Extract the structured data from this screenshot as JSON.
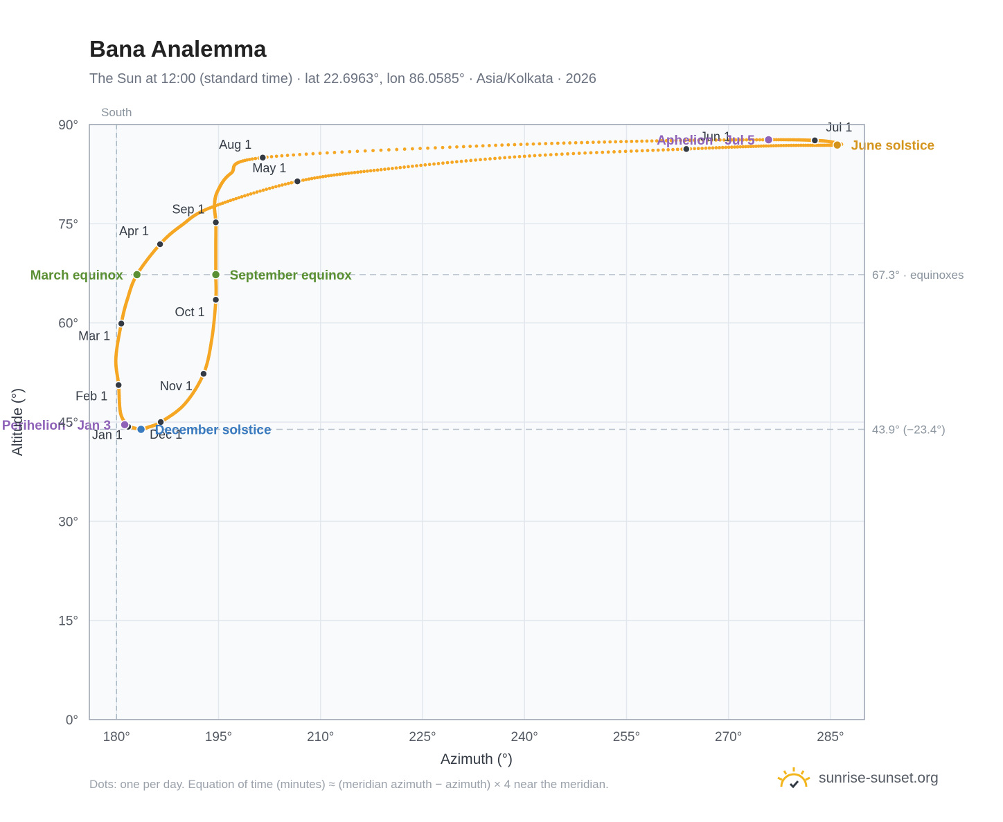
{
  "header": {
    "title": "Bana Analemma",
    "subtitle": "The Sun at 12:00 (standard time) · lat 22.6963°, lon 86.0585° · Asia/Kolkata · 2026"
  },
  "footer": {
    "note": "Dots: one per day. Equation of time (minutes) ≈ (meridian azimuth − azimuth) × 4 near the meridian.",
    "brand": "sunrise-sunset.org"
  },
  "colors": {
    "path": "#f5a623",
    "month_marker": "#333a44",
    "equinox": "#5a8f33",
    "december_solstice": "#3a7abf",
    "june_solstice": "#d4941c",
    "apsis": "#8e63b8",
    "grid": "#e3e8ee",
    "plot_bg": "#f8fafc",
    "reference_line": "#b8c2cc"
  },
  "chart_data": {
    "type": "scatter",
    "xlabel": "Azimuth (°)",
    "ylabel": "Altitude (°)",
    "xlim": [
      176,
      290
    ],
    "ylim": [
      0,
      90
    ],
    "xticks": [
      "180°",
      "195°",
      "210°",
      "225°",
      "240°",
      "255°",
      "270°",
      "285°"
    ],
    "xtick_values": [
      180,
      195,
      210,
      225,
      240,
      255,
      270,
      285
    ],
    "yticks": [
      "0°",
      "15°",
      "30°",
      "45°",
      "60°",
      "75°",
      "90°"
    ],
    "ytick_values": [
      0,
      15,
      30,
      45,
      60,
      75,
      90
    ],
    "grid": true,
    "south_line": {
      "label": "South",
      "azimuth": 180
    },
    "reference_lines": [
      {
        "label": "67.3° · equinoxes",
        "altitude": 67.3
      },
      {
        "label": "43.9° (−23.4°)",
        "altitude": 43.9
      }
    ],
    "series_path_anchors": [
      {
        "date": "Jan 1",
        "az": 181.7,
        "alt": 44.3
      },
      {
        "date": "Jan 15",
        "az": 180.6,
        "alt": 46.3
      },
      {
        "date": "Feb 1",
        "az": 180.3,
        "alt": 50.6
      },
      {
        "date": "Feb 15",
        "az": 179.9,
        "alt": 54.6
      },
      {
        "date": "Mar 1",
        "az": 180.7,
        "alt": 59.9
      },
      {
        "date": "Mar 10",
        "az": 181.6,
        "alt": 63.6
      },
      {
        "date": "Mar 20",
        "az": 183.0,
        "alt": 67.3
      },
      {
        "date": "Apr 1",
        "az": 186.4,
        "alt": 71.9
      },
      {
        "date": "Apr 10",
        "az": 189.5,
        "alt": 74.7
      },
      {
        "date": "Apr 20",
        "az": 194.0,
        "alt": 77.5
      },
      {
        "date": "May 1",
        "az": 206.6,
        "alt": 81.4
      },
      {
        "date": "May 10",
        "az": 220.0,
        "alt": 83.3
      },
      {
        "date": "May 20",
        "az": 240.0,
        "alt": 85.2
      },
      {
        "date": "Jun 1",
        "az": 263.8,
        "alt": 86.3
      },
      {
        "date": "Jun 12",
        "az": 277.0,
        "alt": 86.8
      },
      {
        "date": "Jun 21",
        "az": 286.0,
        "alt": 86.9
      },
      {
        "date": "Jun 26",
        "az": 285.5,
        "alt": 87.3
      },
      {
        "date": "Jul 1",
        "az": 282.7,
        "alt": 87.6
      },
      {
        "date": "Jul 5",
        "az": 275.9,
        "alt": 87.7
      },
      {
        "date": "Jul 15",
        "az": 258.0,
        "alt": 87.5
      },
      {
        "date": "Jul 25",
        "az": 232.0,
        "alt": 86.7
      },
      {
        "date": "Aug 1",
        "az": 201.5,
        "alt": 85.0
      },
      {
        "date": "Aug 8",
        "az": 196.8,
        "alt": 82.6
      },
      {
        "date": "Aug 15",
        "az": 194.9,
        "alt": 80.0
      },
      {
        "date": "Aug 22",
        "az": 194.4,
        "alt": 77.8
      },
      {
        "date": "Sep 1",
        "az": 194.6,
        "alt": 75.2
      },
      {
        "date": "Sep 10",
        "az": 194.6,
        "alt": 71.5
      },
      {
        "date": "Sep 22",
        "az": 194.6,
        "alt": 67.3
      },
      {
        "date": "Oct 1",
        "az": 194.6,
        "alt": 63.5
      },
      {
        "date": "Oct 15",
        "az": 194.0,
        "alt": 57.5
      },
      {
        "date": "Nov 1",
        "az": 192.8,
        "alt": 52.3
      },
      {
        "date": "Nov 15",
        "az": 190.0,
        "alt": 47.7
      },
      {
        "date": "Dec 1",
        "az": 186.5,
        "alt": 45.0
      },
      {
        "date": "Dec 10",
        "az": 184.6,
        "alt": 44.2
      },
      {
        "date": "Dec 21",
        "az": 183.6,
        "alt": 43.9
      },
      {
        "date": "Dec 31",
        "az": 181.8,
        "alt": 44.3
      }
    ],
    "month_markers": [
      {
        "label": "Jan 1",
        "az": 181.7,
        "alt": 44.3
      },
      {
        "label": "Feb 1",
        "az": 180.3,
        "alt": 50.6
      },
      {
        "label": "Mar 1",
        "az": 180.7,
        "alt": 59.9
      },
      {
        "label": "Apr 1",
        "az": 186.4,
        "alt": 71.9
      },
      {
        "label": "May 1",
        "az": 206.6,
        "alt": 81.4
      },
      {
        "label": "Jun 1",
        "az": 263.8,
        "alt": 86.3
      },
      {
        "label": "Jul 1",
        "az": 282.7,
        "alt": 87.6
      },
      {
        "label": "Aug 1",
        "az": 201.5,
        "alt": 85.0
      },
      {
        "label": "Sep 1",
        "az": 194.6,
        "alt": 75.2
      },
      {
        "label": "Oct 1",
        "az": 194.6,
        "alt": 63.5
      },
      {
        "label": "Nov 1",
        "az": 192.8,
        "alt": 52.3
      },
      {
        "label": "Dec 1",
        "az": 186.5,
        "alt": 45.0
      }
    ],
    "events": [
      {
        "label": "March equinox",
        "az": 183.0,
        "alt": 67.3,
        "color_key": "equinox",
        "side": "left"
      },
      {
        "label": "September equinox",
        "az": 194.6,
        "alt": 67.3,
        "color_key": "equinox",
        "side": "right"
      },
      {
        "label": "June solstice",
        "az": 286.0,
        "alt": 86.9,
        "color_key": "june_solstice",
        "side": "right"
      },
      {
        "label": "December solstice",
        "az": 183.6,
        "alt": 43.9,
        "color_key": "december_solstice",
        "side": "right"
      },
      {
        "label": "Perihelion · Jan 3",
        "az": 181.2,
        "alt": 44.6,
        "color_key": "apsis",
        "side": "left"
      },
      {
        "label": "Aphelion · Jul 5",
        "az": 275.9,
        "alt": 87.7,
        "color_key": "apsis",
        "side": "left"
      }
    ]
  }
}
